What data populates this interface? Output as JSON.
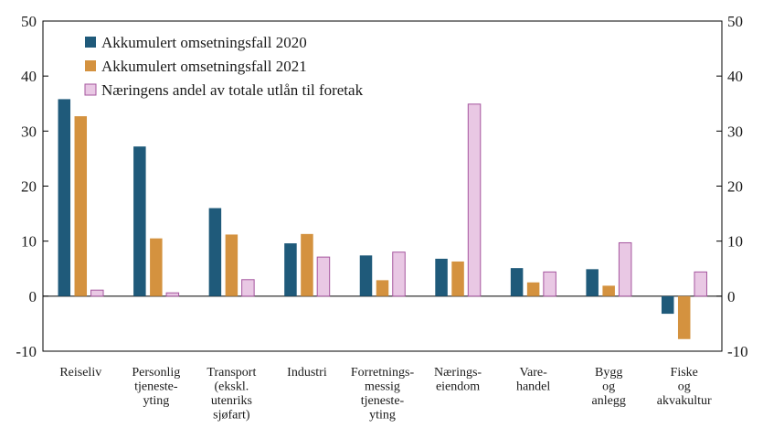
{
  "chart_data": {
    "type": "bar",
    "title": "",
    "xlabel": "",
    "ylabel": "",
    "ylim": [
      -10,
      50
    ],
    "yticks": [
      -10,
      0,
      10,
      20,
      30,
      40,
      50
    ],
    "secondary_axis": true,
    "grid": false,
    "legend_position": "top-left",
    "categories": [
      [
        "Reiseliv"
      ],
      [
        "Personlig",
        "tjeneste-",
        "yting"
      ],
      [
        "Transport",
        "(ekskl.",
        "utenriks",
        "sjøfart)"
      ],
      [
        "Industri"
      ],
      [
        "Forretnings-",
        "messig",
        "tjeneste-",
        "yting"
      ],
      [
        "Nærings-",
        "eiendom"
      ],
      [
        "Vare-",
        "handel"
      ],
      [
        "Bygg",
        "og",
        "anlegg"
      ],
      [
        "Fiske",
        "og",
        "akvakultur"
      ]
    ],
    "series": [
      {
        "name": "Akkumulert omsetningsfall 2020",
        "color": "#1f5a7a",
        "values": [
          35.8,
          27.2,
          16.0,
          9.6,
          7.4,
          6.8,
          5.1,
          4.9,
          -3.2
        ]
      },
      {
        "name": "Akkumulert omsetningsfall 2021",
        "color": "#d4923f",
        "values": [
          32.7,
          10.5,
          11.2,
          11.3,
          2.9,
          6.3,
          2.5,
          1.9,
          -7.8
        ]
      },
      {
        "name": "Næringens andel av totale utlån til foretak",
        "color": "#e9c8e4",
        "stroke": "#a5559e",
        "values": [
          1.1,
          0.6,
          3.0,
          7.1,
          8.0,
          34.9,
          4.4,
          9.7,
          4.4
        ]
      }
    ]
  }
}
